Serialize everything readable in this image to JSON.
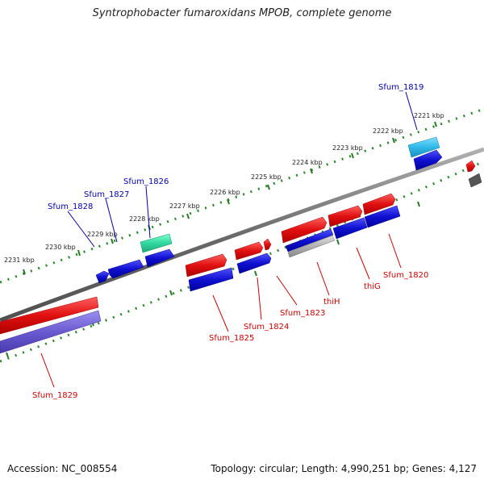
{
  "title": "Syntrophobacter fumaroxidans MPOB, complete genome",
  "footer": {
    "accession": "Accession: NC_008554",
    "topology": "Topology: circular; Length: 4,990,251 bp; Genes: 4,127"
  },
  "colors": {
    "backbone": "#7a7a7a",
    "tick": "#2a7a2a",
    "forward_gene": "#e01010",
    "reverse_gene": "#1010d0",
    "label_forward": "#cc0000",
    "label_reverse": "#0000aa",
    "rna_gene": "#30d8a0",
    "cyan_gene": "#30b8e8"
  },
  "ruler": {
    "ticks": [
      {
        "label": "2231 kbp"
      },
      {
        "label": "2230 kbp"
      },
      {
        "label": "2229 kbp"
      },
      {
        "label": "2228 kbp"
      },
      {
        "label": "2227 kbp"
      },
      {
        "label": "2226 kbp"
      },
      {
        "label": "2225 kbp"
      },
      {
        "label": "2224 kbp"
      },
      {
        "label": "2223 kbp"
      },
      {
        "label": "2222 kbp"
      },
      {
        "label": "2221 kbp"
      }
    ]
  },
  "labels": {
    "sfum_1819": "Sfum_1819",
    "sfum_1826": "Sfum_1826",
    "sfum_1827": "Sfum_1827",
    "sfum_1828": "Sfum_1828",
    "sfum_1829": "Sfum_1829",
    "sfum_1825": "Sfum_1825",
    "sfum_1824": "Sfum_1824",
    "sfum_1823": "Sfum_1823",
    "thih": "thiH",
    "thig": "thiG",
    "sfum_1820": "Sfum_1820"
  }
}
